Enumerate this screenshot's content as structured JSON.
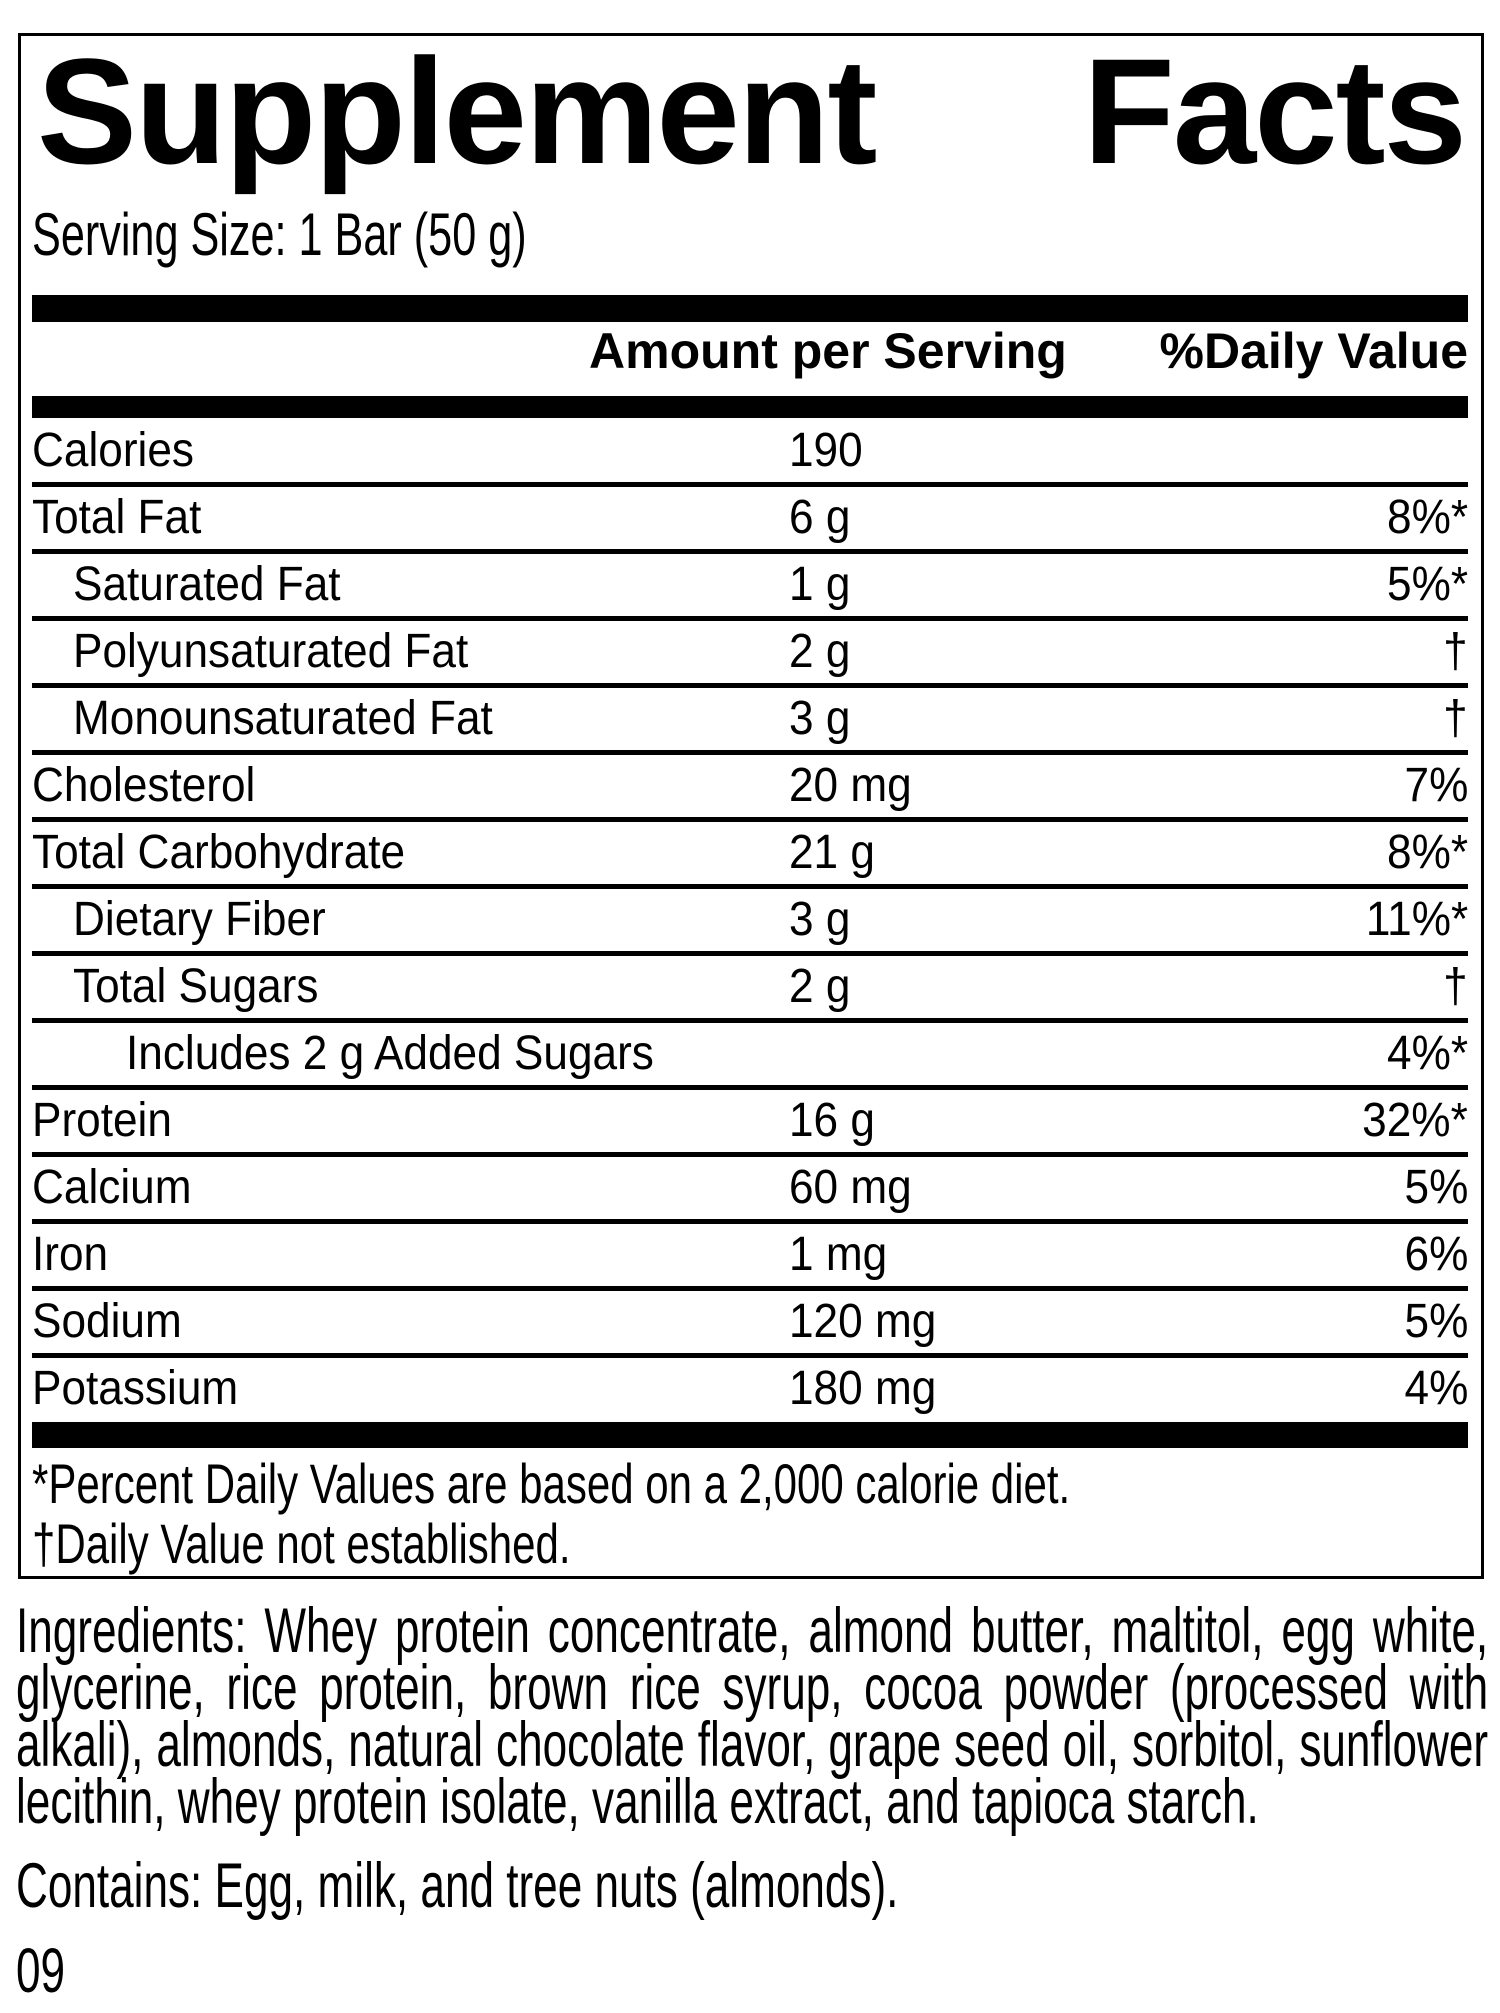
{
  "label": {
    "title": {
      "left_word": "Supplement",
      "right_word": "Facts"
    },
    "serving_size": "Serving Size: 1 Bar (50 g)",
    "column_headers": {
      "amount": "Amount per Serving",
      "daily_value": "%Daily Value"
    },
    "rows": [
      {
        "name": "Calories",
        "amount": "190",
        "dv": ""
      },
      {
        "name": "Total Fat",
        "amount": "6 g",
        "dv": "8%*"
      },
      {
        "name": "Saturated Fat",
        "amount": "1 g",
        "dv": "5%*"
      },
      {
        "name": "Polyunsaturated Fat",
        "amount": "2 g",
        "dv": "†"
      },
      {
        "name": "Monounsaturated Fat",
        "amount": "3 g",
        "dv": "†"
      },
      {
        "name": "Cholesterol",
        "amount": "20 mg",
        "dv": "7%"
      },
      {
        "name": "Total Carbohydrate",
        "amount": "21 g",
        "dv": "8%*"
      },
      {
        "name": "Dietary Fiber",
        "amount": "3 g",
        "dv": "11%*"
      },
      {
        "name": "Total Sugars",
        "amount": "2 g",
        "dv": "†"
      },
      {
        "name": "Includes 2 g Added Sugars",
        "amount": "",
        "dv": "4%*"
      },
      {
        "name": "Protein",
        "amount": "16 g",
        "dv": "32%*"
      },
      {
        "name": "Calcium",
        "amount": "60 mg",
        "dv": "5%"
      },
      {
        "name": "Iron",
        "amount": "1 mg",
        "dv": "6%"
      },
      {
        "name": "Sodium",
        "amount": "120 mg",
        "dv": "5%"
      },
      {
        "name": "Potassium",
        "amount": "180 mg",
        "dv": "4%"
      }
    ],
    "footnotes": {
      "daily_values": "*Percent Daily Values are based on a 2,000 calorie diet.",
      "not_established": "†Daily Value not established."
    },
    "ingredients_lines": [
      "Ingredients: Whey protein concentrate, almond butter, maltitol, egg white,",
      "glycerine, rice protein, brown rice syrup, cocoa powder (processed with",
      "alkali), almonds, natural chocolate flavor, grape seed oil, sorbitol, sunflower",
      "lecithin, whey protein isolate, vanilla extract, and tapioca starch."
    ],
    "contains": "Contains: Egg, milk, and tree nuts (almonds).",
    "code": "09"
  }
}
